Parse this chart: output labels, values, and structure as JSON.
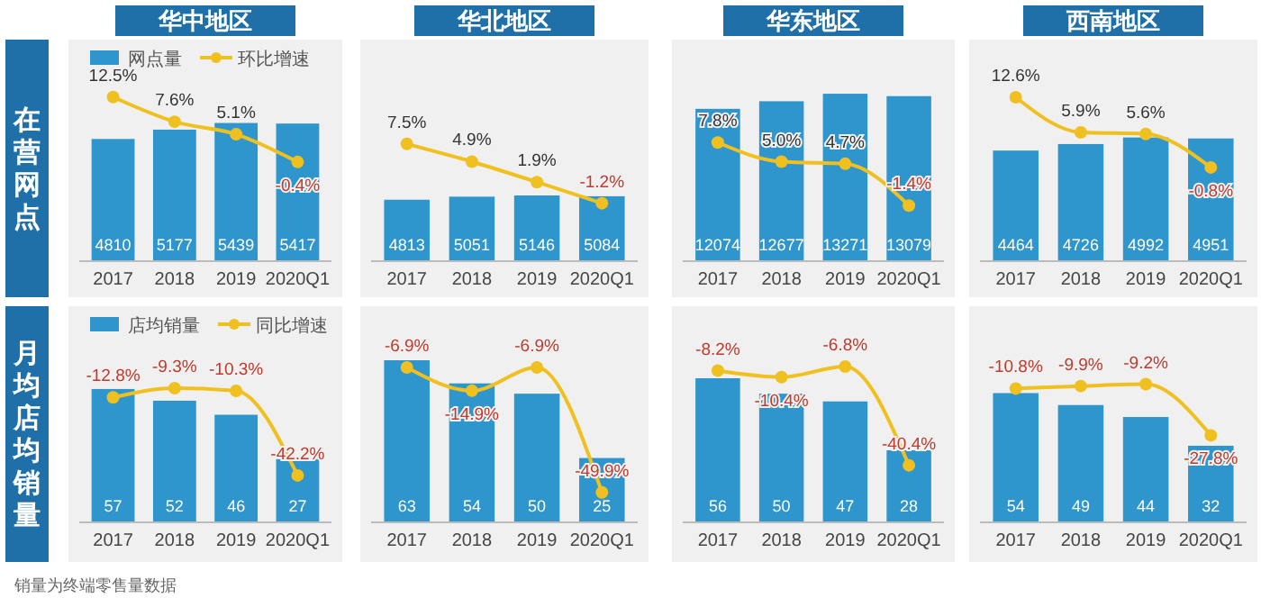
{
  "chart_data": [
    {
      "type": "bar",
      "title": "华中地区",
      "ylabel": "在营网点",
      "categories": [
        "2017",
        "2018",
        "2019",
        "2020Q1"
      ],
      "ylim": [
        0,
        8720
      ],
      "y2lim": [
        -20.1,
        23.9
      ],
      "tick_labels": "x",
      "legend": "top",
      "marker": "circle",
      "series": [
        {
          "name": "网点量",
          "color": "#2e96cc",
          "values": [
            4810,
            5177,
            5439,
            5417
          ],
          "value_labels": [
            "4810",
            "5177",
            "5439",
            "5417"
          ]
        },
        {
          "name": "环比增速",
          "type": "line",
          "axis": "y2",
          "color": "#f0c020",
          "values": [
            12.5,
            7.6,
            5.1,
            -0.4
          ],
          "value_labels": [
            "12.5%",
            "7.6%",
            "5.1%",
            "-0.4%"
          ]
        }
      ]
    },
    {
      "type": "bar",
      "title": "华北地区",
      "categories": [
        "2017",
        "2018",
        "2019",
        "2020Q1"
      ],
      "ylim": [
        0,
        17350
      ],
      "y2lim": [
        -9.7,
        22.8
      ],
      "tick_labels": "x",
      "legend": false,
      "marker": "circle",
      "series": [
        {
          "color": "#2e96cc",
          "values": [
            4813,
            5051,
            5146,
            5084
          ],
          "value_labels": [
            "4813",
            "5051",
            "5146",
            "5084"
          ]
        },
        {
          "type": "line",
          "axis": "y2",
          "color": "#f0c020",
          "values": [
            7.5,
            4.9,
            1.9,
            -1.2
          ],
          "value_labels": [
            "7.5%",
            "4.9%",
            "1.9%",
            "-1.2%"
          ]
        }
      ]
    },
    {
      "type": "bar",
      "title": "华东地区",
      "categories": [
        "2017",
        "2018",
        "2019",
        "2020Q1"
      ],
      "ylim": [
        0,
        17560
      ],
      "y2lim": [
        -9.5,
        22.8
      ],
      "tick_labels": "x",
      "legend": false,
      "marker": "circle",
      "series": [
        {
          "color": "#2e96cc",
          "values": [
            12074,
            12677,
            13271,
            13079
          ],
          "value_labels": [
            "12074",
            "12677",
            "13271",
            "13079"
          ]
        },
        {
          "type": "line",
          "axis": "y2",
          "color": "#f0c020",
          "values": [
            7.8,
            5.0,
            4.7,
            -1.4
          ],
          "value_labels": [
            "7.8%",
            "5.0%",
            "4.7%",
            "-1.4%"
          ]
        }
      ]
    },
    {
      "type": "bar",
      "title": "西南地区",
      "categories": [
        "2017",
        "2018",
        "2019",
        "2020Q1"
      ],
      "ylim": [
        0,
        8940
      ],
      "y2lim": [
        -18.7,
        23.6
      ],
      "tick_labels": "x",
      "legend": false,
      "marker": "circle",
      "series": [
        {
          "color": "#2e96cc",
          "values": [
            4464,
            4726,
            4992,
            4951
          ],
          "value_labels": [
            "4464",
            "4726",
            "4992",
            "4951"
          ]
        },
        {
          "type": "line",
          "axis": "y2",
          "color": "#f0c020",
          "values": [
            12.6,
            5.9,
            5.6,
            -0.8
          ],
          "value_labels": [
            "12.6%",
            "5.9%",
            "5.6%",
            "-0.8%"
          ]
        }
      ]
    },
    {
      "type": "bar",
      "ylabel": "月均店均销量",
      "categories": [
        "2017",
        "2018",
        "2019",
        "2020Q1"
      ],
      "ylim": [
        0,
        92.4
      ],
      "y2lim": [
        -59.9,
        21.6
      ],
      "tick_labels": "x",
      "legend": "top",
      "marker": "circle",
      "annotations": [
        "销量为终端零售量数据"
      ],
      "series": [
        {
          "name": "店均销量",
          "color": "#2e96cc",
          "values": [
            57,
            52,
            46,
            27
          ],
          "value_labels": [
            "57",
            "52",
            "46",
            "27"
          ]
        },
        {
          "name": "同比增速",
          "type": "line",
          "axis": "y2",
          "color": "#f0c020",
          "values": [
            -12.8,
            -9.3,
            -10.3,
            -42.2
          ],
          "value_labels": [
            "-12.8%",
            "-9.3%",
            "-10.3%",
            "-42.2%"
          ]
        }
      ]
    },
    {
      "type": "bar",
      "categories": [
        "2017",
        "2018",
        "2019",
        "2020Q1"
      ],
      "ylim": [
        0,
        84.0
      ],
      "y2lim": [
        -60.2,
        14.2
      ],
      "tick_labels": "x",
      "legend": false,
      "marker": "circle",
      "series": [
        {
          "color": "#2e96cc",
          "values": [
            63,
            54,
            50,
            25
          ],
          "value_labels": [
            "63",
            "54",
            "50",
            "25"
          ]
        },
        {
          "type": "line",
          "axis": "y2",
          "color": "#f0c020",
          "values": [
            -6.9,
            -14.9,
            -6.9,
            -49.9
          ],
          "value_labels": [
            "-6.9%",
            "-14.9%",
            "-6.9%",
            "-49.9%"
          ]
        }
      ]
    },
    {
      "type": "bar",
      "categories": [
        "2017",
        "2018",
        "2019",
        "2020Q1"
      ],
      "ylim": [
        0,
        84.0
      ],
      "y2lim": [
        -59.8,
        13.7
      ],
      "tick_labels": "x",
      "legend": false,
      "marker": "circle",
      "series": [
        {
          "color": "#2e96cc",
          "values": [
            56,
            50,
            47,
            28
          ],
          "value_labels": [
            "56",
            "50",
            "47",
            "28"
          ]
        },
        {
          "type": "line",
          "axis": "y2",
          "color": "#f0c020",
          "values": [
            -8.2,
            -10.4,
            -6.8,
            -40.4
          ],
          "value_labels": [
            "-8.2%",
            "-10.4%",
            "-6.8%",
            "-40.4%"
          ]
        }
      ]
    },
    {
      "type": "bar",
      "categories": [
        "2017",
        "2018",
        "2019",
        "2020Q1"
      ],
      "ylim": [
        0,
        90.3
      ],
      "y2lim": [
        -59.4,
        19.1
      ],
      "tick_labels": "x",
      "legend": false,
      "marker": "circle",
      "series": [
        {
          "color": "#2e96cc",
          "values": [
            54,
            49,
            44,
            32
          ],
          "value_labels": [
            "54",
            "49",
            "44",
            "32"
          ]
        },
        {
          "type": "line",
          "axis": "y2",
          "color": "#f0c020",
          "values": [
            -10.8,
            -9.9,
            -9.2,
            -27.8
          ],
          "value_labels": [
            "-10.8%",
            "-9.9%",
            "-9.2%",
            "-27.8%"
          ]
        }
      ]
    }
  ]
}
